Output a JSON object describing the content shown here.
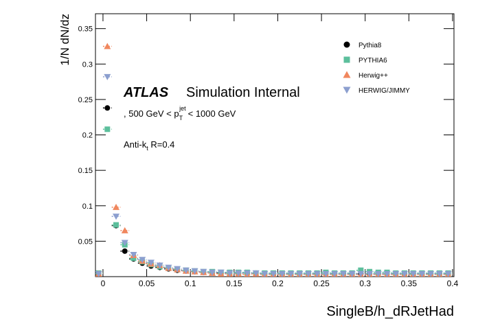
{
  "chart_data": {
    "type": "scatter",
    "x_label": "SingleB/h_dRJetHad",
    "y_label": "1/N dN/dz",
    "atlas_label": "ATLAS",
    "atlas_status": "Simulation Internal",
    "pt_label": [
      ", 500 GeV < p",
      "T",
      "jet",
      "< 1000 GeV"
    ],
    "jet_label": [
      "Anti-k",
      "t",
      " R=0.4"
    ],
    "x": [
      -0.005,
      0.005,
      0.015,
      0.025,
      0.035,
      0.045,
      0.055,
      0.065,
      0.075,
      0.085,
      0.095,
      0.105,
      0.115,
      0.125,
      0.135,
      0.145,
      0.155,
      0.165,
      0.175,
      0.185,
      0.195,
      0.205,
      0.215,
      0.225,
      0.235,
      0.245,
      0.255,
      0.265,
      0.275,
      0.285,
      0.295,
      0.305,
      0.315,
      0.325,
      0.335,
      0.345,
      0.355,
      0.365,
      0.375,
      0.385,
      0.395
    ],
    "series": [
      {
        "name": "Pythia8",
        "color": "#000000",
        "marker": "circle",
        "values": [
          0.003,
          0.238,
          0.072,
          0.036,
          0.025,
          0.019,
          0.015,
          0.013,
          0.011,
          0.009,
          0.008,
          0.007,
          0.006,
          0.006,
          0.005,
          0.005,
          0.005,
          0.005,
          0.005,
          0.004,
          0.004,
          0.004,
          0.004,
          0.004,
          0.004,
          0.004,
          0.004,
          0.004,
          0.004,
          0.004,
          0.004,
          0.004,
          0.004,
          0.004,
          0.004,
          0.004,
          0.004,
          0.004,
          0.004,
          0.004,
          0.004
        ]
      },
      {
        "name": "PYTHIA6",
        "color": "#5cbf9c",
        "marker": "square",
        "values": [
          0.005,
          0.208,
          0.073,
          0.045,
          0.026,
          0.021,
          0.017,
          0.014,
          0.012,
          0.01,
          0.009,
          0.008,
          0.007,
          0.007,
          0.006,
          0.006,
          0.006,
          0.006,
          0.005,
          0.005,
          0.005,
          0.005,
          0.005,
          0.005,
          0.005,
          0.005,
          0.006,
          0.005,
          0.005,
          0.005,
          0.009,
          0.007,
          0.006,
          0.006,
          0.005,
          0.005,
          0.005,
          0.005,
          0.005,
          0.005,
          0.005
        ]
      },
      {
        "name": "Herwig++",
        "color": "#f0875e",
        "marker": "triangle-up",
        "values": [
          0.004,
          0.325,
          0.098,
          0.065,
          0.03,
          0.022,
          0.018,
          0.016,
          0.012,
          0.01,
          0.008,
          0.007,
          0.006,
          0.005,
          0.004,
          0.004,
          0.004,
          0.003,
          0.004,
          0.003,
          0.003,
          0.003,
          0.003,
          0.003,
          0.003,
          0.003,
          0.003,
          0.003,
          0.003,
          0.003,
          0.003,
          0.003,
          0.003,
          0.003,
          0.003,
          0.003,
          0.003,
          0.003,
          0.003,
          0.003,
          0.003
        ]
      },
      {
        "name": "HERWIG/JIMMY",
        "color": "#8c9fcf",
        "marker": "triangle-down",
        "values": [
          0.004,
          0.282,
          0.085,
          0.048,
          0.031,
          0.024,
          0.02,
          0.016,
          0.013,
          0.011,
          0.009,
          0.008,
          0.007,
          0.006,
          0.006,
          0.005,
          0.005,
          0.005,
          0.005,
          0.004,
          0.004,
          0.004,
          0.004,
          0.004,
          0.004,
          0.004,
          0.004,
          0.004,
          0.004,
          0.004,
          0.004,
          0.004,
          0.004,
          0.004,
          0.004,
          0.004,
          0.004,
          0.004,
          0.004,
          0.004,
          0.004
        ]
      }
    ],
    "xlim": [
      -0.0086,
      0.4016
    ],
    "ylim": [
      0,
      0.371
    ],
    "xticks": [
      0,
      0.05,
      0.1,
      0.15,
      0.2,
      0.25,
      0.3,
      0.35,
      0.4
    ],
    "yticks": [
      0.05,
      0.1,
      0.15,
      0.2,
      0.25,
      0.3,
      0.35
    ],
    "legend": "upper-right"
  }
}
